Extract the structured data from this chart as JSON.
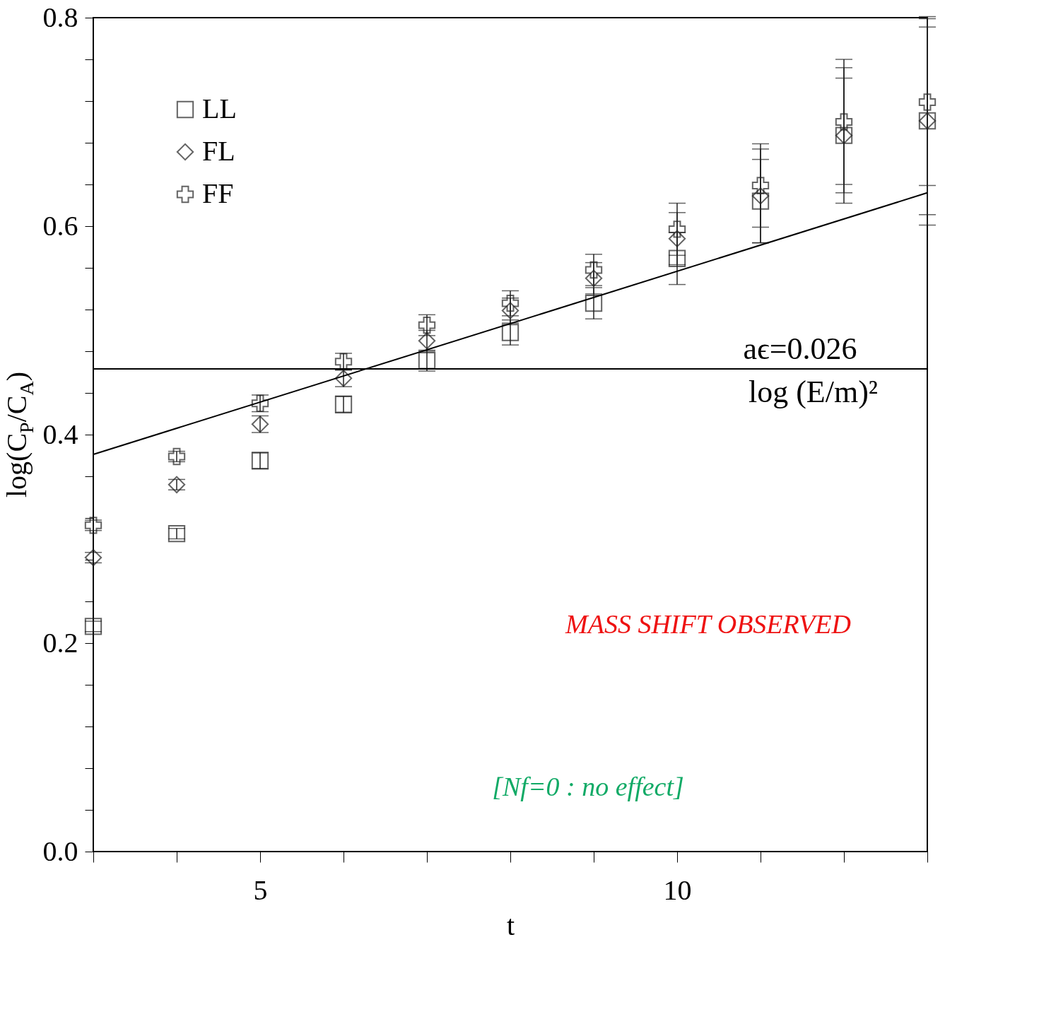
{
  "chart_data": {
    "type": "scatter",
    "xlabel": "t",
    "ylabel": "log(C$_{P}$/C$_{A}$)",
    "xlim": [
      3,
      13
    ],
    "ylim": [
      0,
      0.8
    ],
    "xticks": [
      {
        "value": 3,
        "label": null
      },
      {
        "value": 4,
        "label": null
      },
      {
        "value": 5,
        "label": "5"
      },
      {
        "value": 6,
        "label": null
      },
      {
        "value": 7,
        "label": null
      },
      {
        "value": 8,
        "label": null
      },
      {
        "value": 9,
        "label": null
      },
      {
        "value": 10,
        "label": "10"
      },
      {
        "value": 11,
        "label": null
      },
      {
        "value": 12,
        "label": null
      },
      {
        "value": 13,
        "label": null
      }
    ],
    "yticks": [
      {
        "value": 0,
        "label": "0.0"
      },
      {
        "value": 0.04,
        "label": null
      },
      {
        "value": 0.08,
        "label": null
      },
      {
        "value": 0.12,
        "label": null
      },
      {
        "value": 0.16,
        "label": null
      },
      {
        "value": 0.2,
        "label": "0.2"
      },
      {
        "value": 0.24,
        "label": null
      },
      {
        "value": 0.28,
        "label": null
      },
      {
        "value": 0.32,
        "label": null
      },
      {
        "value": 0.36,
        "label": null
      },
      {
        "value": 0.4,
        "label": "0.4"
      },
      {
        "value": 0.44,
        "label": null
      },
      {
        "value": 0.48,
        "label": null
      },
      {
        "value": 0.52,
        "label": null
      },
      {
        "value": 0.56,
        "label": null
      },
      {
        "value": 0.6,
        "label": "0.6"
      },
      {
        "value": 0.64,
        "label": null
      },
      {
        "value": 0.68,
        "label": null
      },
      {
        "value": 0.72,
        "label": null
      },
      {
        "value": 0.76,
        "label": null
      },
      {
        "value": 0.8,
        "label": "0.8"
      }
    ],
    "x": [
      3,
      4,
      5,
      6,
      7,
      8,
      9,
      10,
      11,
      12,
      13
    ],
    "series": [
      {
        "name": "LL",
        "color": "#222222",
        "marker": "square",
        "values": [
          0.216,
          0.305,
          0.375,
          0.429,
          0.471,
          0.498,
          0.526,
          0.569,
          0.624,
          0.687,
          0.701
        ],
        "errors": [
          0.005,
          0.005,
          0.008,
          0.008,
          0.01,
          0.012,
          0.015,
          0.025,
          0.04,
          0.065,
          0.09
        ]
      },
      {
        "name": "FL",
        "color": "#222222",
        "marker": "diamond",
        "values": [
          0.282,
          0.352,
          0.41,
          0.454,
          0.49,
          0.519,
          0.55,
          0.588,
          0.629,
          0.687,
          0.701
        ],
        "errors": [
          0.005,
          0.005,
          0.008,
          0.008,
          0.01,
          0.012,
          0.015,
          0.025,
          0.045,
          0.055,
          0.1
        ]
      },
      {
        "name": "FF",
        "color": "#222222",
        "marker": "cross",
        "values": [
          0.313,
          0.379,
          0.43,
          0.47,
          0.505,
          0.526,
          0.558,
          0.597,
          0.639,
          0.7,
          0.719
        ],
        "errors": [
          0.005,
          0.005,
          0.008,
          0.008,
          0.01,
          0.012,
          0.015,
          0.025,
          0.04,
          0.06,
          0.08
        ]
      },
      {
        "type": "line",
        "color": "#000000",
        "x": [
          3,
          13
        ],
        "values": [
          0.381,
          0.632
        ]
      }
    ],
    "ref_lines": [
      {
        "axis": "y",
        "value": 0.463,
        "label": "log (E/m)²",
        "color": "#000000"
      }
    ],
    "annotations": [
      "aϵ=0.026",
      "MASS SHIFT OBSERVED",
      "[Nf=0 : no effect]"
    ],
    "legend": "top left",
    "grid": false,
    "line_style": "solid"
  }
}
